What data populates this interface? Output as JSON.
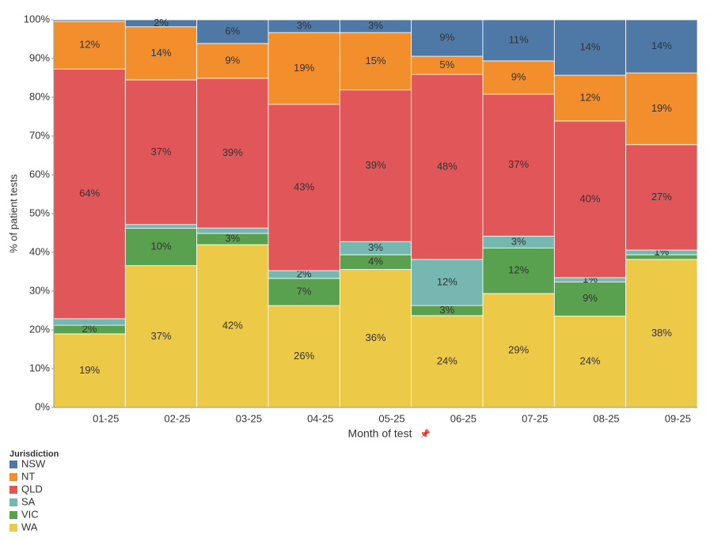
{
  "chart_data": {
    "type": "stacked-bar",
    "x_label": "Month of test",
    "y_label": "% of patient tests",
    "legend_title": "Jurisdiction",
    "categories": [
      "01-25",
      "02-25",
      "03-25",
      "04-25",
      "05-25",
      "06-25",
      "07-25",
      "08-25",
      "09-25"
    ],
    "ylim": [
      0,
      100
    ],
    "yticks": [
      {
        "value": 0,
        "label": "0%"
      },
      {
        "value": 10,
        "label": "10%"
      },
      {
        "value": 20,
        "label": "20%"
      },
      {
        "value": 30,
        "label": "30%"
      },
      {
        "value": 40,
        "label": "40%"
      },
      {
        "value": 50,
        "label": "50%"
      },
      {
        "value": 60,
        "label": "60%"
      },
      {
        "value": 70,
        "label": "70%"
      },
      {
        "value": 80,
        "label": "80%"
      },
      {
        "value": 90,
        "label": "90%"
      },
      {
        "value": 100,
        "label": "100%"
      }
    ],
    "series": [
      {
        "name": "WA",
        "color": "#edc948",
        "values": [
          19.0,
          36.6,
          42.0,
          26.3,
          35.6,
          23.7,
          29.4,
          23.6,
          38.2
        ],
        "value_labels": [
          "19%",
          "37%",
          "42%",
          "26%",
          "36%",
          "24%",
          "29%",
          "24%",
          "38%"
        ]
      },
      {
        "name": "VIC",
        "color": "#59a14f",
        "values": [
          2.2,
          9.6,
          2.9,
          7.0,
          3.8,
          2.6,
          11.7,
          8.8,
          1.2
        ],
        "value_labels": [
          "2%",
          "10%",
          "3%",
          "7%",
          "4%",
          "3%",
          "12%",
          "9%",
          null
        ]
      },
      {
        "name": "SA",
        "color": "#76b7b2",
        "values": [
          1.7,
          1.0,
          1.4,
          2.0,
          3.4,
          11.9,
          3.1,
          1.1,
          1.2
        ],
        "value_labels": [
          null,
          null,
          null,
          "2%",
          "3%",
          "12%",
          "3%",
          "1%",
          "1%"
        ]
      },
      {
        "name": "QLD",
        "color": "#e15759",
        "values": [
          64.4,
          37.3,
          38.6,
          42.9,
          39.1,
          47.7,
          36.6,
          40.4,
          27.2
        ],
        "value_labels": [
          "64%",
          "37%",
          "39%",
          "43%",
          "39%",
          "48%",
          "37%",
          "40%",
          "27%"
        ]
      },
      {
        "name": "NT",
        "color": "#f28e2b",
        "values": [
          12.3,
          13.7,
          9.0,
          18.5,
          14.8,
          4.7,
          8.6,
          11.8,
          18.5
        ],
        "value_labels": [
          "12%",
          "14%",
          "9%",
          "19%",
          "15%",
          "5%",
          "9%",
          "12%",
          "19%"
        ]
      },
      {
        "name": "NSW",
        "color": "#4e79a7",
        "values": [
          0.4,
          1.8,
          6.1,
          3.3,
          3.3,
          9.4,
          10.6,
          14.3,
          13.7
        ],
        "value_labels": [
          null,
          "2%",
          "6%",
          "3%",
          "3%",
          "9%",
          "11%",
          "14%",
          "14%"
        ]
      }
    ]
  }
}
